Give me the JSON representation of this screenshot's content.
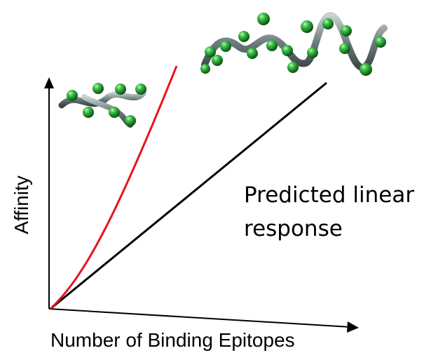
{
  "diagram": {
    "y_axis_label": "Affinity",
    "x_axis_label": "Number of Binding Epitopes",
    "annotation_line1": "Predicted linear",
    "annotation_line2": "response",
    "colors": {
      "predicted_line": "#000000",
      "observed_curve": "#e8141a",
      "epitope_bead": "#1e8a2e",
      "polymer_backbone": "#6f7f80"
    },
    "icons": [
      "short-polymer-with-epitopes",
      "long-polymer-with-epitopes"
    ]
  }
}
